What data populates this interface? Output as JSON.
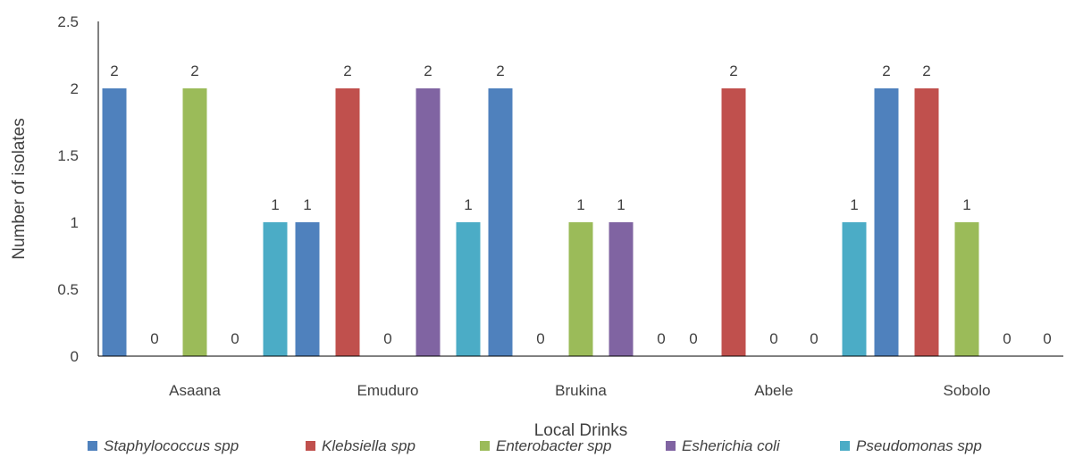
{
  "chart_data": {
    "type": "bar",
    "title": "",
    "xlabel": "Local Drinks",
    "ylabel": "Number of isolates",
    "ylim": [
      0,
      2.5
    ],
    "yticks": [
      "0",
      "0.5",
      "1",
      "1.5",
      "2",
      "2.5"
    ],
    "grid": false,
    "legend_position": "bottom",
    "categories": [
      "Asaana",
      "Emuduro",
      "Brukina",
      "Abele",
      "Sobolo"
    ],
    "series": [
      {
        "name": "Staphylococcus spp",
        "color": "#4F81BD",
        "values": [
          2,
          1,
          2,
          0,
          2
        ]
      },
      {
        "name": "Klebsiella spp",
        "color": "#C0504D",
        "values": [
          0,
          2,
          0,
          2,
          2
        ]
      },
      {
        "name": "Enterobacter spp",
        "color": "#9BBB59",
        "values": [
          2,
          0,
          1,
          0,
          1
        ]
      },
      {
        "name": "Esherichia coli",
        "color": "#8064A2",
        "values": [
          0,
          2,
          1,
          0,
          0
        ]
      },
      {
        "name": "Pseudomonas spp",
        "color": "#4BACC6",
        "values": [
          1,
          1,
          0,
          1,
          0
        ]
      }
    ]
  }
}
